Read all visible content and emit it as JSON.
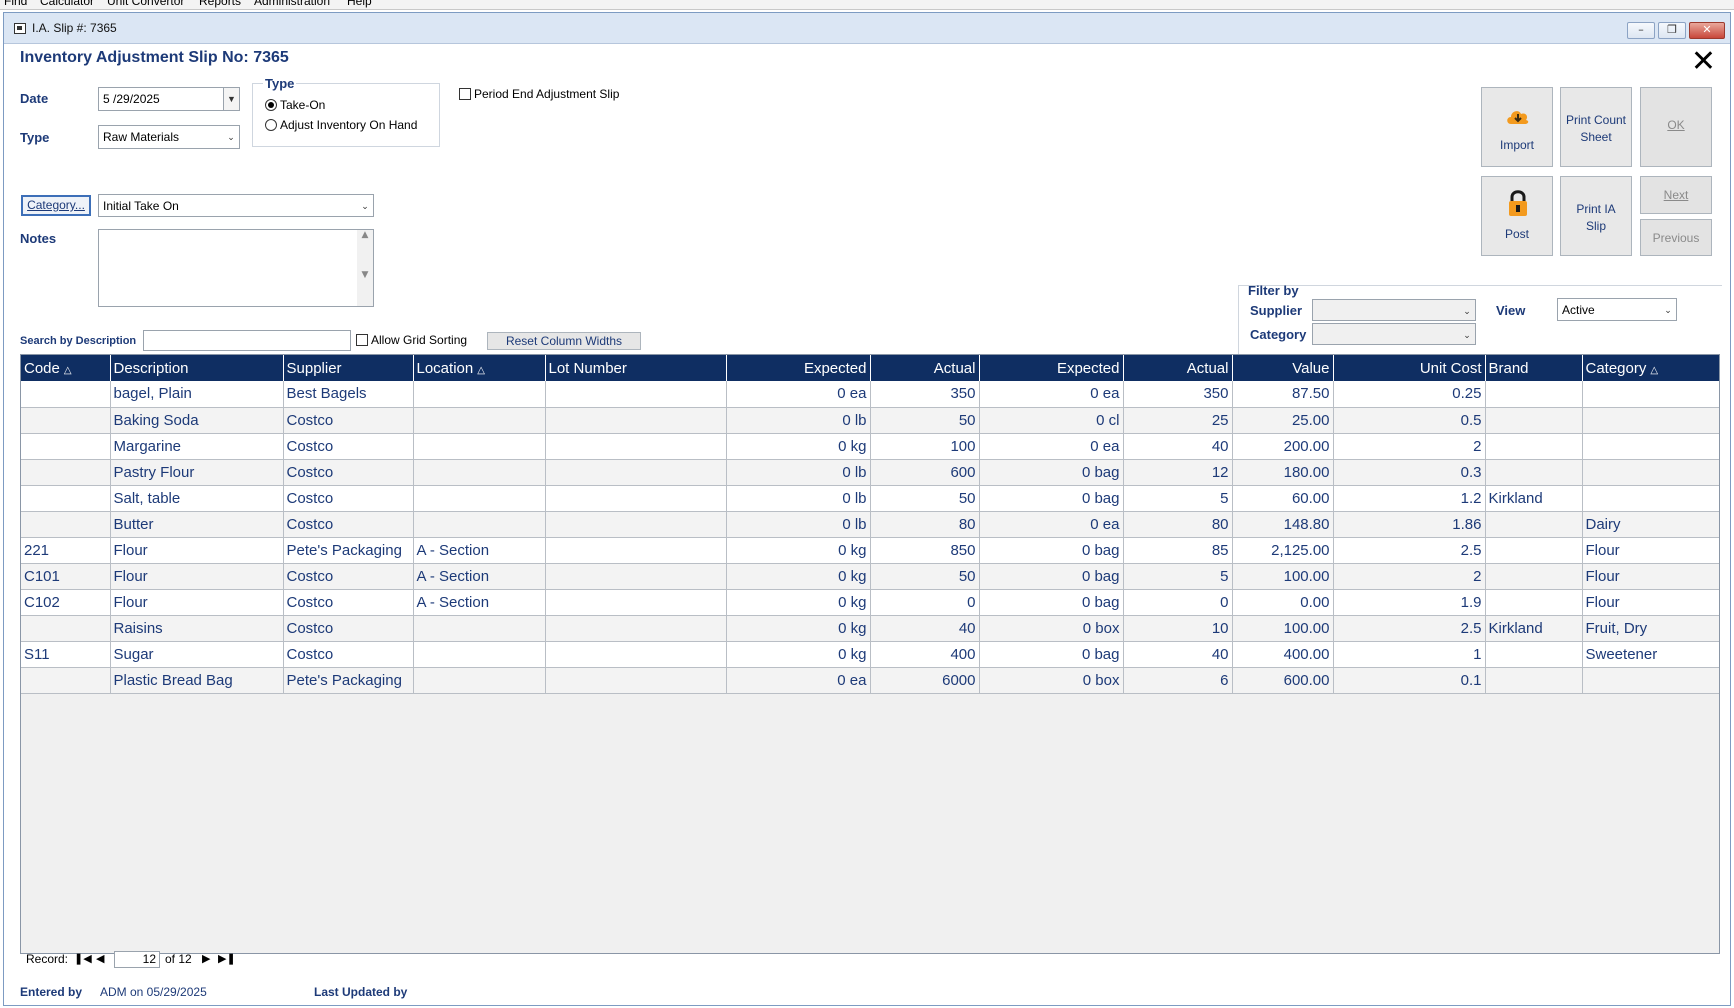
{
  "menubar": {
    "items": [
      "Find",
      "Calculator",
      "Unit Convertor",
      "Reports",
      "Administration",
      "Help"
    ]
  },
  "window": {
    "title": "I.A. Slip #: 7365"
  },
  "form": {
    "heading": "Inventory Adjustment Slip No: 7365",
    "date_label": "Date",
    "date_value": "5 /29/2025",
    "type_label": "Type",
    "type_value": "Raw Materials",
    "type_group": {
      "legend": "Type",
      "options": [
        "Take-On",
        "Adjust Inventory On Hand"
      ],
      "selected": "Take-On"
    },
    "period_end_label": "Period End Adjustment Slip",
    "period_end_checked": false,
    "category_button": "Category...",
    "category_value": "Initial Take On",
    "notes_label": "Notes",
    "notes_value": "",
    "search_label": "Search by Description",
    "search_value": "",
    "allow_sorting_label": "Allow Grid Sorting",
    "allow_sorting_checked": false,
    "reset_button": "Reset Column Widths"
  },
  "actions": {
    "import": "Import",
    "print_count_sheet": "Print Count Sheet",
    "ok": "OK",
    "post": "Post",
    "print_ia_slip": "Print IA Slip",
    "next": "Next",
    "previous": "Previous"
  },
  "filter": {
    "title": "Filter by",
    "supplier_label": "Supplier",
    "supplier_value": "",
    "category_label": "Category",
    "category_value": "",
    "view_label": "View",
    "view_value": "Active"
  },
  "grid": {
    "columns": [
      "Code",
      "Description",
      "Supplier",
      "Location",
      "Lot Number",
      "Expected",
      "Actual",
      "Expected",
      "Actual",
      "Value",
      "Unit Cost",
      "Brand",
      "Category"
    ],
    "rows": [
      [
        "",
        "bagel, Plain",
        "Best Bagels",
        "",
        "",
        "0 ea",
        "350",
        "0 ea",
        "350",
        "87.50",
        "0.25",
        "",
        ""
      ],
      [
        "",
        "Baking Soda",
        "Costco",
        "",
        "",
        "0 lb",
        "50",
        "0 cl",
        "25",
        "25.00",
        "0.5",
        "",
        ""
      ],
      [
        "",
        "Margarine",
        "Costco",
        "",
        "",
        "0 kg",
        "100",
        "0 ea",
        "40",
        "200.00",
        "2",
        "",
        ""
      ],
      [
        "",
        "Pastry Flour",
        "Costco",
        "",
        "",
        "0 lb",
        "600",
        "0 bag",
        "12",
        "180.00",
        "0.3",
        "",
        ""
      ],
      [
        "",
        "Salt, table",
        "Costco",
        "",
        "",
        "0 lb",
        "50",
        "0 bag",
        "5",
        "60.00",
        "1.2",
        "Kirkland",
        ""
      ],
      [
        "",
        "Butter",
        "Costco",
        "",
        "",
        "0 lb",
        "80",
        "0 ea",
        "80",
        "148.80",
        "1.86",
        "",
        "Dairy"
      ],
      [
        "221",
        "Flour",
        "Pete's Packaging",
        "A - Section",
        "",
        "0 kg",
        "850",
        "0 bag",
        "85",
        "2,125.00",
        "2.5",
        "",
        "Flour"
      ],
      [
        "C101",
        "Flour",
        "Costco",
        "A - Section",
        "",
        "0 kg",
        "50",
        "0 bag",
        "5",
        "100.00",
        "2",
        "",
        "Flour"
      ],
      [
        "C102",
        "Flour",
        "Costco",
        "A - Section",
        "",
        "0 kg",
        "0",
        "0 bag",
        "0",
        "0.00",
        "1.9",
        "",
        "Flour"
      ],
      [
        "",
        "Raisins",
        "Costco",
        "",
        "",
        "0 kg",
        "40",
        "0 box",
        "10",
        "100.00",
        "2.5",
        "Kirkland",
        "Fruit, Dry"
      ],
      [
        "S11",
        "Sugar",
        "Costco",
        "",
        "",
        "0 kg",
        "400",
        "0 bag",
        "40",
        "400.00",
        "1",
        "",
        "Sweetener"
      ],
      [
        "",
        "Plastic Bread Bag",
        "Pete's Packaging",
        "",
        "",
        "0 ea",
        "6000",
        "0 box",
        "6",
        "600.00",
        "0.1",
        "",
        ""
      ]
    ]
  },
  "nav": {
    "record_label": "Record:",
    "current": "12",
    "of_text": "of 12"
  },
  "footer": {
    "entered_by_label": "Entered by",
    "entered_by_value": "ADM on 05/29/2025",
    "last_updated_label": "Last Updated by",
    "last_updated_value": ""
  },
  "colors": {
    "header_bg": "#0f2e62",
    "label_blue": "#1d3a78",
    "accent_orange": "#f39a1e"
  }
}
